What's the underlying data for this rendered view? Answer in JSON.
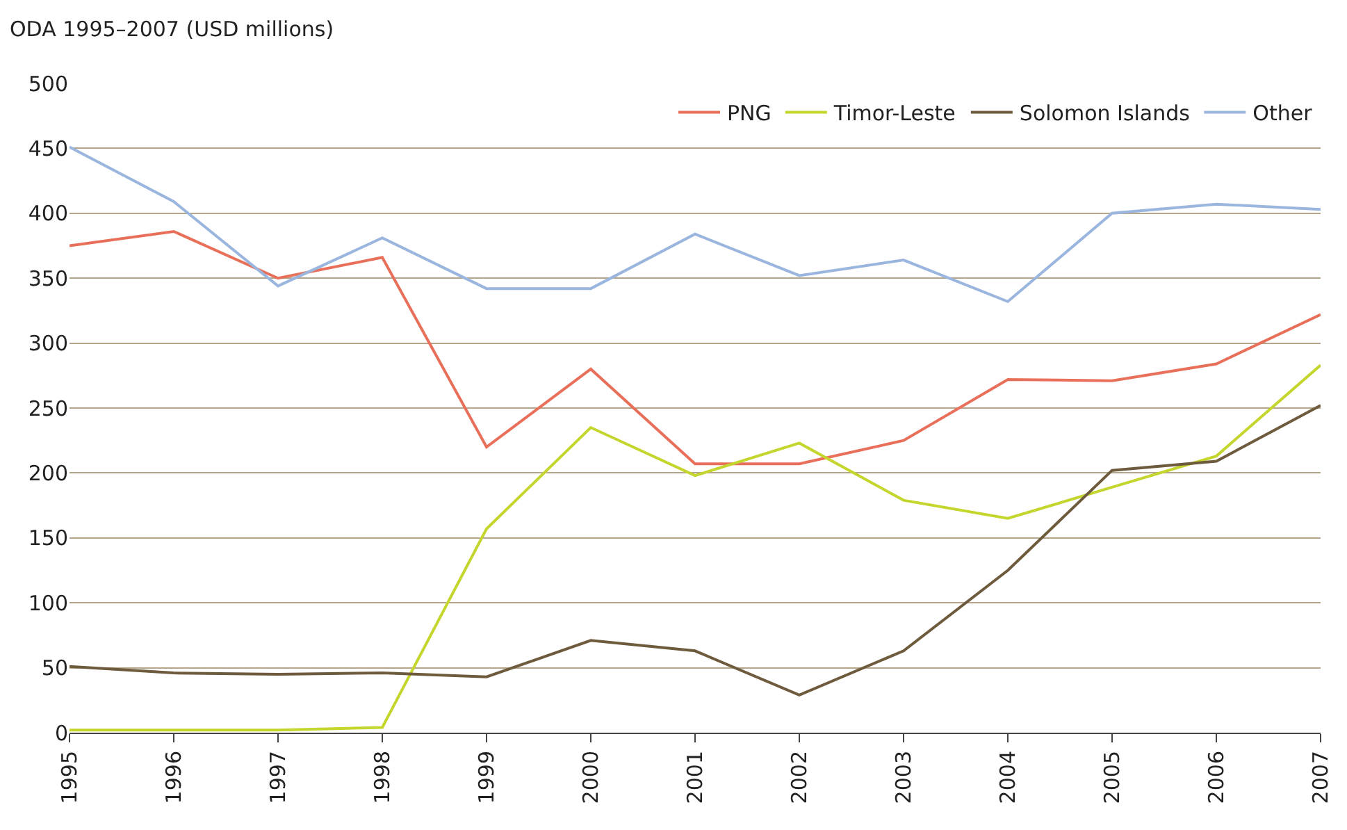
{
  "chart_data": {
    "type": "line",
    "ylabel": "ODA 1995–2007 (USD millions)",
    "x": [
      1995,
      1996,
      1997,
      1998,
      1999,
      2000,
      2001,
      2002,
      2003,
      2004,
      2005,
      2006,
      2007
    ],
    "series": [
      {
        "name": "PNG",
        "color": "#e8705a",
        "values": [
          375,
          386,
          350,
          366,
          220,
          280,
          207,
          207,
          225,
          272,
          271,
          284,
          322
        ]
      },
      {
        "name": "Timor-Leste",
        "color": "#c4d62e",
        "values": [
          2,
          2,
          2,
          4,
          157,
          235,
          198,
          223,
          179,
          165,
          189,
          213,
          283
        ]
      },
      {
        "name": "Solomon Islands",
        "color": "#6e5a3c",
        "values": [
          51,
          46,
          45,
          46,
          43,
          71,
          63,
          29,
          63,
          125,
          202,
          209,
          252
        ]
      },
      {
        "name": "Other",
        "color": "#9bb6de",
        "values": [
          451,
          409,
          344,
          381,
          342,
          342,
          384,
          352,
          364,
          332,
          400,
          407,
          403
        ]
      }
    ],
    "xlim": [
      1995,
      2007
    ],
    "xticks": [
      1995,
      1996,
      1997,
      1998,
      1999,
      2000,
      2001,
      2002,
      2003,
      2004,
      2005,
      2006,
      2007
    ],
    "ylim": [
      0,
      500
    ],
    "yticks": [
      0,
      50,
      100,
      150,
      200,
      250,
      300,
      350,
      400,
      450,
      500
    ],
    "grid": "y",
    "legend": "top right",
    "marker": "none",
    "line_style": "solid"
  }
}
